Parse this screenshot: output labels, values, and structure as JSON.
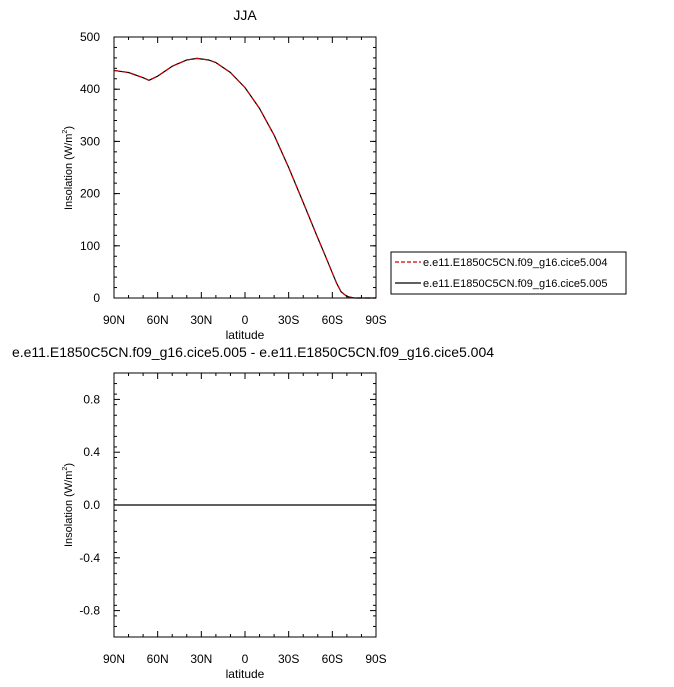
{
  "chart_data": [
    {
      "type": "line",
      "title": "JJA",
      "xlabel": "latitude",
      "ylabel": "Insolation (W/m",
      "ylabel_sup": "2",
      "ylabel_close": ")",
      "xlim": [
        90,
        -90
      ],
      "ylim": [
        0,
        500
      ],
      "x_ticks": [
        90,
        60,
        30,
        0,
        -30,
        -60,
        -90
      ],
      "x_ticklabels": [
        "90N",
        "60N",
        "30N",
        "0",
        "30S",
        "60S",
        "90S"
      ],
      "y_ticks": [
        0,
        100,
        200,
        300,
        400,
        500
      ],
      "y_ticklabels": [
        "0",
        "100",
        "200",
        "300",
        "400",
        "500"
      ],
      "legend_position": "right",
      "series": [
        {
          "name": "e.e11.E1850C5CN.f09_g16.cice5.004",
          "color": "#cc0000",
          "dash": "dashed",
          "x": [
            90,
            80,
            70,
            66,
            60,
            50,
            40,
            33,
            25,
            20,
            10,
            0,
            -10,
            -20,
            -30,
            -40,
            -50,
            -55,
            -60,
            -63,
            -66,
            -70,
            -75,
            -80,
            -90
          ],
          "y": [
            436,
            432,
            422,
            417,
            425,
            444,
            456,
            459,
            456,
            451,
            432,
            403,
            363,
            312,
            250,
            183,
            115,
            82,
            48,
            28,
            12,
            3,
            0,
            0,
            0
          ]
        },
        {
          "name": "e.e11.E1850C5CN.f09_g16.cice5.005",
          "color": "#000000",
          "dash": "solid",
          "x": [
            90,
            80,
            70,
            66,
            60,
            50,
            40,
            33,
            25,
            20,
            10,
            0,
            -10,
            -20,
            -30,
            -40,
            -50,
            -55,
            -60,
            -63,
            -66,
            -70,
            -75,
            -80,
            -90
          ],
          "y": [
            436,
            432,
            422,
            417,
            425,
            444,
            456,
            459,
            456,
            451,
            432,
            403,
            363,
            312,
            250,
            183,
            115,
            82,
            48,
            28,
            12,
            3,
            0,
            0,
            0
          ]
        }
      ]
    },
    {
      "type": "line",
      "title": "e.e11.E1850C5CN.f09_g16.cice5.005 - e.e11.E1850C5CN.f09_g16.cice5.004",
      "xlabel": "latitude",
      "ylabel": "Insolation (W/m",
      "ylabel_sup": "2",
      "ylabel_close": ")",
      "xlim": [
        90,
        -90
      ],
      "ylim": [
        -1,
        1
      ],
      "x_ticks": [
        90,
        60,
        30,
        0,
        -30,
        -60,
        -90
      ],
      "x_ticklabels": [
        "90N",
        "60N",
        "30N",
        "0",
        "30S",
        "60S",
        "90S"
      ],
      "y_ticks": [
        -0.8,
        -0.4,
        0.0,
        0.4,
        0.8
      ],
      "y_ticklabels": [
        "-0.8",
        "-0.4",
        "0.0",
        "0.4",
        "0.8"
      ],
      "series": [
        {
          "color": "#000000",
          "dash": "solid",
          "x": [
            90,
            -90
          ],
          "y": [
            0,
            0
          ]
        }
      ]
    }
  ]
}
